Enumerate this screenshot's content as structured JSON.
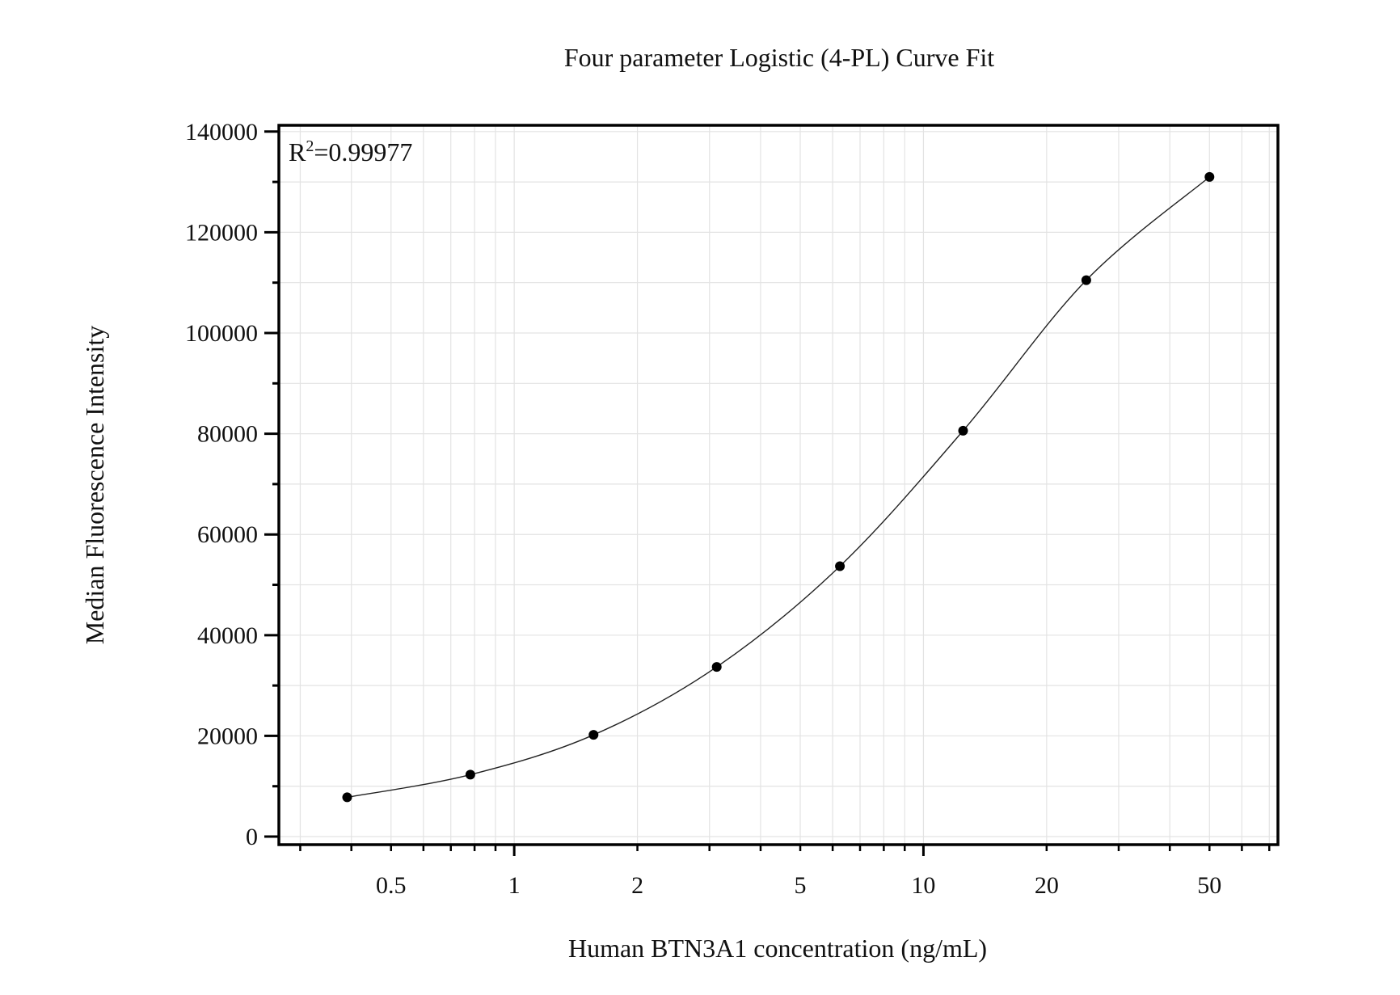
{
  "chart_data": {
    "type": "scatter",
    "title": "Four parameter Logistic (4-PL) Curve Fit",
    "xlabel": "Human BTN3A1 concentration (ng/mL)",
    "ylabel": "Median Fluorescence Intensity",
    "annotation": {
      "prefix": "R",
      "superscript": "2",
      "value": "=0.99977"
    },
    "x_scale": "log",
    "xlim": [
      0.266,
      73.5
    ],
    "ylim": [
      -1600,
      141250
    ],
    "x_ticks": [
      0.5,
      1,
      2,
      5,
      10,
      20,
      50
    ],
    "x_tick_labels": [
      "0.5",
      "1",
      "2",
      "5",
      "10",
      "20",
      "50"
    ],
    "y_ticks": [
      0,
      20000,
      40000,
      60000,
      80000,
      100000,
      120000,
      140000
    ],
    "y_tick_labels": [
      "0",
      "20000",
      "40000",
      "60000",
      "80000",
      "100000",
      "120000",
      "140000"
    ],
    "grid": true,
    "fit": "4-PL curve",
    "points": {
      "x": [
        0.390625,
        0.78125,
        1.5625,
        3.125,
        6.25,
        12.5,
        25,
        50
      ],
      "y": [
        7800,
        12300,
        20200,
        33700,
        53700,
        80600,
        110500,
        131000
      ]
    },
    "colors": {
      "points": "#000000",
      "curve": "#222222",
      "grid": "#e3e3e3",
      "axis": "#000000"
    }
  }
}
